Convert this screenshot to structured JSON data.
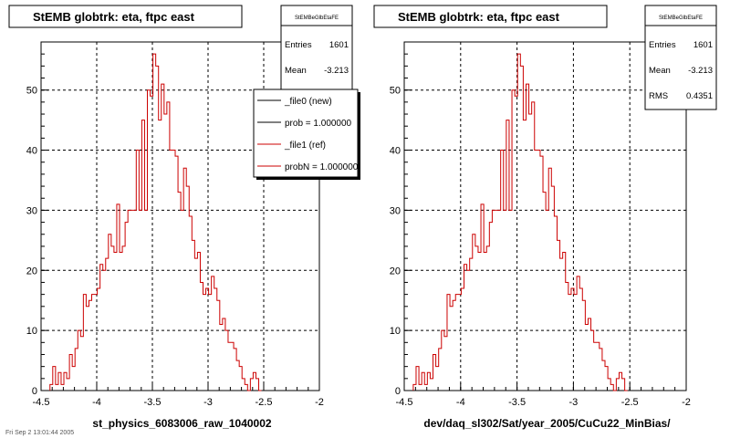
{
  "footer_text": "Fri Sep 2 13:01:44 2005",
  "chart_data": [
    {
      "type": "bar",
      "title": "StEMB globtrk: eta, ftpc east",
      "xlabel": "st_physics_6083006_raw_1040002",
      "ylabel": "",
      "xlim": [
        -4.5,
        -2.0
      ],
      "ylim": [
        0,
        58
      ],
      "x_ticks": [
        "-4.5",
        "-4",
        "-3.5",
        "-3",
        "-2.5",
        "-2"
      ],
      "y_ticks": [
        "0",
        "10",
        "20",
        "30",
        "40",
        "50"
      ],
      "grid": true,
      "stats": {
        "name": "StEMBeGlbEtaFE",
        "Entries": "1601",
        "Mean": "-3.213"
      },
      "legend": [
        {
          "label": "_file0 (new)",
          "color": "#000000"
        },
        {
          "label": "prob = 1.000000",
          "color": "#000000"
        },
        {
          "label": "_file1 (ref)",
          "color": "#cc0000"
        },
        {
          "label": "probN = 1.000000",
          "color": "#cc0000"
        }
      ],
      "bin_start": -4.42,
      "bin_width": 0.025,
      "series": [
        {
          "name": "_file1 (ref)",
          "color": "#cc0000",
          "values": [
            1,
            4,
            1,
            3,
            1,
            3,
            2,
            6,
            4,
            7,
            10,
            9,
            16,
            14,
            15,
            16,
            16,
            17,
            21,
            20,
            22,
            26,
            24,
            23,
            31,
            23,
            24,
            28,
            30,
            30,
            30,
            40,
            30,
            45,
            30,
            50,
            49,
            56,
            54,
            45,
            51,
            46,
            48,
            40,
            40,
            39,
            33,
            30,
            37,
            34,
            29,
            25,
            22,
            23,
            18,
            16,
            17,
            16,
            19,
            17,
            15,
            11,
            12,
            10,
            8,
            8,
            7,
            5,
            4,
            2,
            1,
            0,
            2,
            3,
            2,
            0
          ]
        }
      ]
    },
    {
      "type": "bar",
      "title": "StEMB globtrk: eta, ftpc east",
      "xlabel": "dev/daq_sl302/Sat/year_2005/CuCu22_MinBias/",
      "ylabel": "",
      "xlim": [
        -4.5,
        -2.0
      ],
      "ylim": [
        0,
        58
      ],
      "x_ticks": [
        "-4.5",
        "-4",
        "-3.5",
        "-3",
        "-2.5",
        "-2"
      ],
      "y_ticks": [
        "0",
        "10",
        "20",
        "30",
        "40",
        "50"
      ],
      "grid": true,
      "stats": {
        "name": "StEMBeGlbEtaFE",
        "Entries": "1601",
        "Mean": "-3.213",
        "RMS": "0.4351"
      },
      "bin_start": -4.42,
      "bin_width": 0.025,
      "series": [
        {
          "name": "_file1 (ref)",
          "color": "#cc0000",
          "values": [
            1,
            4,
            1,
            3,
            1,
            3,
            2,
            6,
            4,
            7,
            10,
            9,
            16,
            14,
            15,
            16,
            16,
            17,
            21,
            20,
            22,
            26,
            24,
            23,
            31,
            23,
            24,
            28,
            30,
            30,
            30,
            40,
            30,
            45,
            30,
            50,
            49,
            56,
            54,
            45,
            51,
            46,
            48,
            40,
            40,
            39,
            33,
            30,
            37,
            34,
            29,
            25,
            22,
            23,
            18,
            16,
            17,
            16,
            19,
            17,
            15,
            11,
            12,
            10,
            8,
            8,
            7,
            5,
            4,
            2,
            1,
            0,
            2,
            3,
            2,
            0
          ]
        }
      ]
    }
  ]
}
